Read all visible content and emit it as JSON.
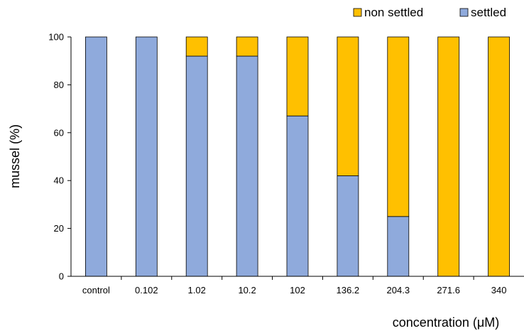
{
  "chart_data": {
    "type": "bar",
    "stacked": true,
    "categories": [
      "control",
      "0.102",
      "1.02",
      "10.2",
      "102",
      "136.2",
      "204.3",
      "271.6",
      "340"
    ],
    "series": [
      {
        "name": "settled",
        "color": "#8FAADC",
        "values": [
          100,
          100,
          92,
          92,
          67,
          42,
          25,
          0,
          0
        ]
      },
      {
        "name": "non settled",
        "color": "#FFC000",
        "values": [
          0,
          0,
          8,
          8,
          33,
          58,
          75,
          100,
          100
        ]
      }
    ],
    "legend_order": [
      "non settled",
      "settled"
    ],
    "legend_position": "top-right",
    "xlabel": "concentration (μM)",
    "ylabel": "mussel (%)",
    "ylim": [
      0,
      100
    ],
    "yticks": [
      0,
      20,
      40,
      60,
      80,
      100
    ],
    "grid": false
  }
}
